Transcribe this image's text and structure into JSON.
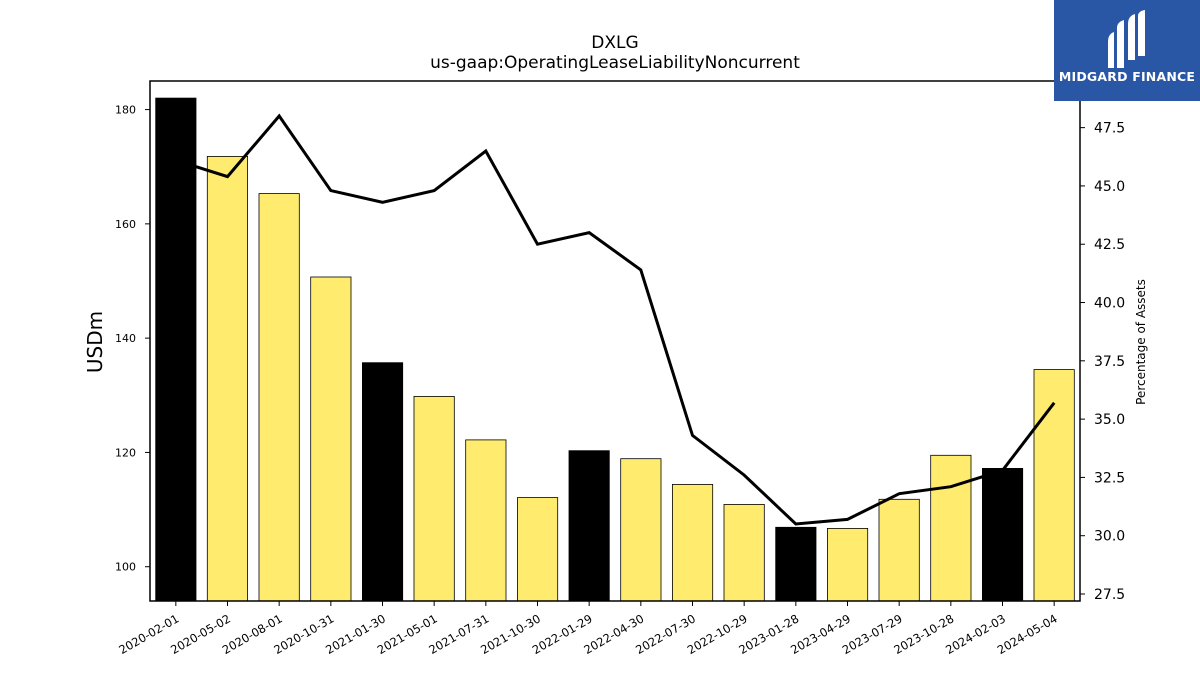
{
  "logo": {
    "text": "MIDGARD FINANCE"
  },
  "colors": {
    "bar_highlight": "#000000",
    "bar_default": "#ffec6e",
    "line": "#000000",
    "logo_bg": "#2a56a6"
  },
  "chart_data": {
    "type": "bar",
    "title": "DXLG",
    "subtitle": "us-gaap:OperatingLeaseLiabilityNoncurrent",
    "ylabel": "USDm",
    "y2label": "Percentage of Assets",
    "ylim": [
      94,
      185
    ],
    "y2lim": [
      27.2,
      49.5
    ],
    "yticks": [
      100,
      120,
      140,
      160,
      180
    ],
    "y2ticks": [
      27.5,
      30.0,
      32.5,
      35.0,
      37.5,
      40.0,
      42.5,
      45.0,
      47.5
    ],
    "categories": [
      "2020-02-01",
      "2020-05-02",
      "2020-08-01",
      "2020-10-31",
      "2021-01-30",
      "2021-05-01",
      "2021-07-31",
      "2021-10-30",
      "2022-01-29",
      "2022-04-30",
      "2022-07-30",
      "2022-10-29",
      "2023-01-28",
      "2023-04-29",
      "2023-07-29",
      "2023-10-28",
      "2024-02-03",
      "2024-05-04"
    ],
    "series": [
      {
        "type": "bar",
        "axis": "left",
        "values": [
          182.0,
          171.8,
          165.3,
          150.7,
          135.7,
          129.8,
          122.2,
          112.1,
          120.3,
          118.9,
          114.4,
          110.9,
          106.9,
          106.7,
          111.8,
          119.5,
          117.2,
          134.5
        ],
        "highlight": [
          true,
          false,
          false,
          false,
          true,
          false,
          false,
          false,
          true,
          false,
          false,
          false,
          true,
          false,
          false,
          false,
          true,
          false
        ]
      },
      {
        "type": "line",
        "axis": "right",
        "values": [
          46.1,
          45.4,
          48.0,
          44.8,
          44.3,
          44.8,
          46.5,
          42.5,
          43.0,
          41.4,
          34.3,
          32.6,
          30.5,
          30.7,
          31.8,
          32.1,
          32.8,
          35.7
        ]
      }
    ]
  }
}
